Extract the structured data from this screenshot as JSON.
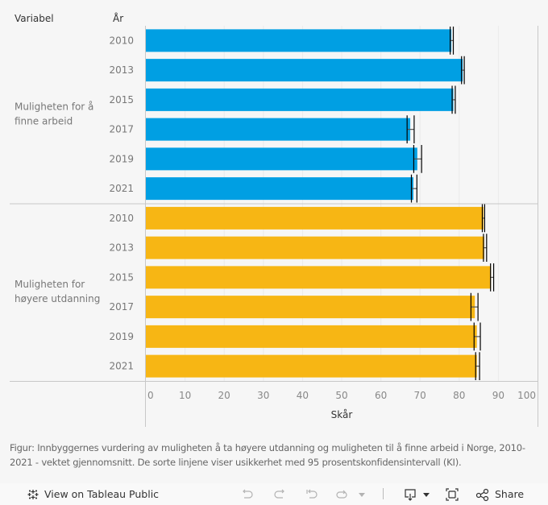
{
  "header": {
    "variable_col": "Variabel",
    "year_col": "År"
  },
  "chart_data": {
    "type": "bar",
    "orientation": "horizontal",
    "xlabel": "Skår",
    "xlim": [
      0,
      100
    ],
    "xticks": [
      0,
      10,
      20,
      30,
      40,
      50,
      60,
      70,
      80,
      90,
      100
    ],
    "grid": true,
    "groups": [
      {
        "name": "Muligheten for å finne arbeid",
        "color": "#009fe3",
        "rows": [
          {
            "year": "2010",
            "value": 78.0,
            "ci_low": 77.7,
            "ci_high": 78.5
          },
          {
            "year": "2013",
            "value": 80.9,
            "ci_low": 80.6,
            "ci_high": 81.3
          },
          {
            "year": "2015",
            "value": 78.5,
            "ci_low": 78.2,
            "ci_high": 79.0
          },
          {
            "year": "2017",
            "value": 67.5,
            "ci_low": 66.7,
            "ci_high": 68.5
          },
          {
            "year": "2019",
            "value": 69.3,
            "ci_low": 68.4,
            "ci_high": 70.4
          },
          {
            "year": "2021",
            "value": 68.3,
            "ci_low": 67.8,
            "ci_high": 69.2
          }
        ]
      },
      {
        "name": "Muligheten for høyere utdanning",
        "color": "#f7b614",
        "rows": [
          {
            "year": "2010",
            "value": 86.2,
            "ci_low": 85.9,
            "ci_high": 86.5
          },
          {
            "year": "2013",
            "value": 86.4,
            "ci_low": 86.2,
            "ci_high": 87.0
          },
          {
            "year": "2015",
            "value": 88.1,
            "ci_low": 88.0,
            "ci_high": 88.8
          },
          {
            "year": "2017",
            "value": 84.0,
            "ci_low": 83.0,
            "ci_high": 84.8
          },
          {
            "year": "2019",
            "value": 84.5,
            "ci_low": 83.8,
            "ci_high": 85.4
          },
          {
            "year": "2021",
            "value": 84.5,
            "ci_low": 84.2,
            "ci_high": 85.2
          }
        ]
      }
    ],
    "group_label_lines": [
      [
        "Muligheten for å",
        "finne arbeid"
      ],
      [
        "Muligheten for",
        "høyere utdanning"
      ]
    ]
  },
  "caption": "Figur: Innbyggernes vurdering av muligheten å ta høyere utdanning og muligheten til å finne arbeid i Norge, 2010-2021 - vektet gjennomsnitt. De sorte linjene viser usikkerhet med 95 prosentskonfidensintervall (KI).",
  "toolbar": {
    "view_on_tableau": "View on Tableau Public",
    "share": "Share",
    "icons": [
      "tableau-logo-icon",
      "undo-icon",
      "redo-icon",
      "revert-icon",
      "refresh-icon",
      "dropdown-icon",
      "download-icon",
      "fullscreen-icon",
      "share-icon"
    ]
  }
}
